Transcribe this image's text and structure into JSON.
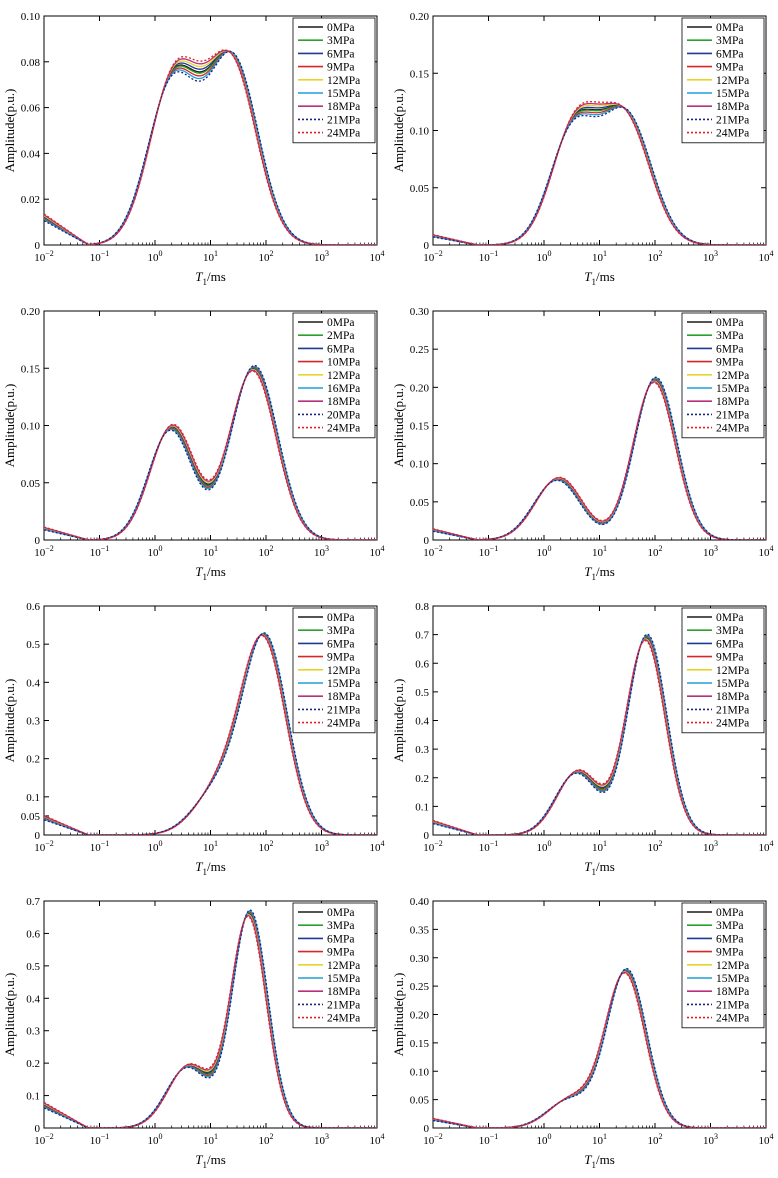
{
  "figure": {
    "colors": {
      "black": "#1a1a1a",
      "green": "#2ca02c",
      "darkblue": "#1f3a93",
      "red": "#d62728",
      "yellow": "#e6d42a",
      "cyan": "#1f9fd6",
      "magenta": "#b8327a",
      "dotblue": "#1a237e",
      "dotred": "#e02020"
    }
  },
  "chart_data": [
    {
      "type": "line",
      "xlabel": "T1/ms",
      "ylabel": "Amplitude(p.u.)",
      "xscale": "log",
      "xlim": [
        0.01,
        10000
      ],
      "ylim": [
        0,
        0.1
      ],
      "yticks": [
        "0",
        "0.02",
        "0.04",
        "0.06",
        "0.08",
        "0.10"
      ],
      "legend": "top-right",
      "series": [
        {
          "name": "0MPa",
          "color": "black",
          "dash": false
        },
        {
          "name": "3MPa",
          "color": "green",
          "dash": false
        },
        {
          "name": "6MPa",
          "color": "darkblue",
          "dash": false
        },
        {
          "name": "9MPa",
          "color": "red",
          "dash": false
        },
        {
          "name": "12MPa",
          "color": "yellow",
          "dash": false
        },
        {
          "name": "15MPa",
          "color": "cyan",
          "dash": false
        },
        {
          "name": "18MPa",
          "color": "magenta",
          "dash": false
        },
        {
          "name": "21MPa",
          "color": "dotblue",
          "dash": true
        },
        {
          "name": "24MPa",
          "color": "dotred",
          "dash": true
        }
      ],
      "shape": {
        "left": 0.012,
        "p1": {
          "c": 2.2,
          "a": 0.072,
          "w": 0.45
        },
        "p2": {
          "c": 25,
          "a": 0.079,
          "w": 0.45
        },
        "tail": 0.0
      }
    },
    {
      "type": "line",
      "xlabel": "T1/ms",
      "ylabel": "Amplitude(p.u.)",
      "xscale": "log",
      "xlim": [
        0.01,
        10000
      ],
      "ylim": [
        0,
        0.2
      ],
      "yticks": [
        "0",
        "0.05",
        "0.10",
        "0.15",
        "0.20"
      ],
      "legend": "top-right",
      "series": [
        {
          "name": "0MPa",
          "color": "black",
          "dash": false
        },
        {
          "name": "3MPa",
          "color": "green",
          "dash": false
        },
        {
          "name": "6MPa",
          "color": "darkblue",
          "dash": false
        },
        {
          "name": "9MPa",
          "color": "red",
          "dash": false
        },
        {
          "name": "12MPa",
          "color": "yellow",
          "dash": false
        },
        {
          "name": "15MPa",
          "color": "cyan",
          "dash": false
        },
        {
          "name": "18MPa",
          "color": "magenta",
          "dash": false
        },
        {
          "name": "21MPa",
          "color": "dotblue",
          "dash": true
        },
        {
          "name": "24MPa",
          "color": "dotred",
          "dash": true
        }
      ],
      "shape": {
        "left": 0.008,
        "p1": {
          "c": 3.5,
          "a": 0.1,
          "w": 0.42
        },
        "p2": {
          "c": 30,
          "a": 0.11,
          "w": 0.45
        },
        "tail": 0.0
      }
    },
    {
      "type": "line",
      "xlabel": "T1/ms",
      "ylabel": "Amplitude(p.u.)",
      "xscale": "log",
      "xlim": [
        0.01,
        10000
      ],
      "ylim": [
        0,
        0.2
      ],
      "yticks": [
        "0",
        "0.05",
        "0.10",
        "0.15",
        "0.20"
      ],
      "legend": "top-right",
      "series": [
        {
          "name": "0MPa",
          "color": "black",
          "dash": false
        },
        {
          "name": "2MPa",
          "color": "green",
          "dash": false
        },
        {
          "name": "6MPa",
          "color": "darkblue",
          "dash": false
        },
        {
          "name": "10MPa",
          "color": "red",
          "dash": false
        },
        {
          "name": "12MPa",
          "color": "yellow",
          "dash": false
        },
        {
          "name": "16MPa",
          "color": "cyan",
          "dash": false
        },
        {
          "name": "18MPa",
          "color": "magenta",
          "dash": false
        },
        {
          "name": "20MPa",
          "color": "dotblue",
          "dash": true
        },
        {
          "name": "24MPa",
          "color": "dotred",
          "dash": true
        }
      ],
      "shape": {
        "left": 0.01,
        "p1": {
          "c": 2.0,
          "a": 0.098,
          "w": 0.4
        },
        "p2": {
          "c": 60,
          "a": 0.15,
          "w": 0.42
        },
        "tail": 0.0
      }
    },
    {
      "type": "line",
      "xlabel": "T1/ms",
      "ylabel": "Amplitude(p.u.)",
      "xscale": "log",
      "xlim": [
        0.01,
        10000
      ],
      "ylim": [
        0,
        0.3
      ],
      "yticks": [
        "0",
        "0.05",
        "0.10",
        "0.15",
        "0.20",
        "0.25",
        "0.30"
      ],
      "legend": "top-right",
      "series": [
        {
          "name": "0MPa",
          "color": "black",
          "dash": false
        },
        {
          "name": "3MPa",
          "color": "green",
          "dash": false
        },
        {
          "name": "6MPa",
          "color": "darkblue",
          "dash": false
        },
        {
          "name": "9MPa",
          "color": "red",
          "dash": false
        },
        {
          "name": "12MPa",
          "color": "yellow",
          "dash": false
        },
        {
          "name": "15MPa",
          "color": "cyan",
          "dash": false
        },
        {
          "name": "18MPa",
          "color": "magenta",
          "dash": false
        },
        {
          "name": "21MPa",
          "color": "dotblue",
          "dash": true
        },
        {
          "name": "24MPa",
          "color": "dotred",
          "dash": true
        }
      ],
      "shape": {
        "left": 0.013,
        "p1": {
          "c": 1.8,
          "a": 0.08,
          "w": 0.42
        },
        "p2": {
          "c": 100,
          "a": 0.21,
          "w": 0.38
        },
        "tail": 0.0
      }
    },
    {
      "type": "line",
      "xlabel": "T1/ms",
      "ylabel": "Amplitude(p.u.)",
      "xscale": "log",
      "xlim": [
        0.01,
        10000
      ],
      "ylim": [
        0,
        0.6
      ],
      "yticks": [
        "0",
        "0.05",
        "0.1",
        "0.2",
        "0.3",
        "0.4",
        "0.5",
        "0.6"
      ],
      "legend": "top-right",
      "series": [
        {
          "name": "0MPa",
          "color": "black",
          "dash": false
        },
        {
          "name": "3MPa",
          "color": "green",
          "dash": false
        },
        {
          "name": "6MPa",
          "color": "darkblue",
          "dash": false
        },
        {
          "name": "9MPa",
          "color": "red",
          "dash": false
        },
        {
          "name": "12MPa",
          "color": "yellow",
          "dash": false
        },
        {
          "name": "15MPa",
          "color": "cyan",
          "dash": false
        },
        {
          "name": "18MPa",
          "color": "magenta",
          "dash": false
        },
        {
          "name": "21MPa",
          "color": "dotblue",
          "dash": true
        },
        {
          "name": "24MPa",
          "color": "dotred",
          "dash": true
        }
      ],
      "shape": {
        "left": 0.045,
        "p1": {
          "c": 15,
          "a": 0.12,
          "w": 0.45
        },
        "p2": {
          "c": 95,
          "a": 0.5,
          "w": 0.4
        },
        "tail": 0.0
      }
    },
    {
      "type": "line",
      "xlabel": "T1/ms",
      "ylabel": "Amplitude(p.u.)",
      "xscale": "log",
      "xlim": [
        0.01,
        10000
      ],
      "ylim": [
        0,
        0.8
      ],
      "yticks": [
        "0",
        "0.1",
        "0.2",
        "0.3",
        "0.4",
        "0.5",
        "0.6",
        "0.7",
        "0.8"
      ],
      "legend": "top-right",
      "series": [
        {
          "name": "0MPa",
          "color": "black",
          "dash": false
        },
        {
          "name": "3MPa",
          "color": "green",
          "dash": false
        },
        {
          "name": "6MPa",
          "color": "darkblue",
          "dash": false
        },
        {
          "name": "9MPa",
          "color": "red",
          "dash": false
        },
        {
          "name": "12MPa",
          "color": "yellow",
          "dash": false
        },
        {
          "name": "15MPa",
          "color": "cyan",
          "dash": false
        },
        {
          "name": "18MPa",
          "color": "magenta",
          "dash": false
        },
        {
          "name": "21MPa",
          "color": "dotblue",
          "dash": true
        },
        {
          "name": "24MPa",
          "color": "dotred",
          "dash": true
        }
      ],
      "shape": {
        "left": 0.045,
        "p1": {
          "c": 4,
          "a": 0.22,
          "w": 0.38
        },
        "p2": {
          "c": 70,
          "a": 0.69,
          "w": 0.35
        },
        "tail": 0.0
      }
    },
    {
      "type": "line",
      "xlabel": "T1/ms",
      "ylabel": "Amplitude(p.u.)",
      "xscale": "log",
      "xlim": [
        0.01,
        10000
      ],
      "ylim": [
        0,
        0.7
      ],
      "yticks": [
        "0",
        "0.1",
        "0.2",
        "0.3",
        "0.4",
        "0.5",
        "0.6",
        "0.7"
      ],
      "legend": "top-right",
      "series": [
        {
          "name": "0MPa",
          "color": "black",
          "dash": false
        },
        {
          "name": "3MPa",
          "color": "green",
          "dash": false
        },
        {
          "name": "6MPa",
          "color": "darkblue",
          "dash": false
        },
        {
          "name": "9MPa",
          "color": "red",
          "dash": false
        },
        {
          "name": "12MPa",
          "color": "yellow",
          "dash": false
        },
        {
          "name": "15MPa",
          "color": "cyan",
          "dash": false
        },
        {
          "name": "18MPa",
          "color": "magenta",
          "dash": false
        },
        {
          "name": "21MPa",
          "color": "dotblue",
          "dash": true
        },
        {
          "name": "24MPa",
          "color": "dotred",
          "dash": true
        }
      ],
      "shape": {
        "left": 0.07,
        "p1": {
          "c": 4,
          "a": 0.19,
          "w": 0.38
        },
        "p2": {
          "c": 50,
          "a": 0.66,
          "w": 0.32
        },
        "tail": 0.0
      }
    },
    {
      "type": "line",
      "xlabel": "T1/ms",
      "ylabel": "Amplitude(p.u.)",
      "xscale": "log",
      "xlim": [
        0.01,
        10000
      ],
      "ylim": [
        0,
        0.4
      ],
      "yticks": [
        "0",
        "0.05",
        "0.10",
        "0.15",
        "0.20",
        "0.25",
        "0.30",
        "0.35",
        "0.40"
      ],
      "legend": "top-right",
      "series": [
        {
          "name": "0MPa",
          "color": "black",
          "dash": false
        },
        {
          "name": "3MPa",
          "color": "green",
          "dash": false
        },
        {
          "name": "6MPa",
          "color": "darkblue",
          "dash": false
        },
        {
          "name": "9MPa",
          "color": "red",
          "dash": false
        },
        {
          "name": "12MPa",
          "color": "yellow",
          "dash": false
        },
        {
          "name": "15MPa",
          "color": "cyan",
          "dash": false
        },
        {
          "name": "18MPa",
          "color": "magenta",
          "dash": false
        },
        {
          "name": "21MPa",
          "color": "dotblue",
          "dash": true
        },
        {
          "name": "24MPa",
          "color": "dotred",
          "dash": true
        }
      ],
      "shape": {
        "left": 0.015,
        "p1": {
          "c": 3,
          "a": 0.05,
          "w": 0.4
        },
        "p2": {
          "c": 30,
          "a": 0.275,
          "w": 0.36
        },
        "tail": 0.0
      }
    }
  ]
}
